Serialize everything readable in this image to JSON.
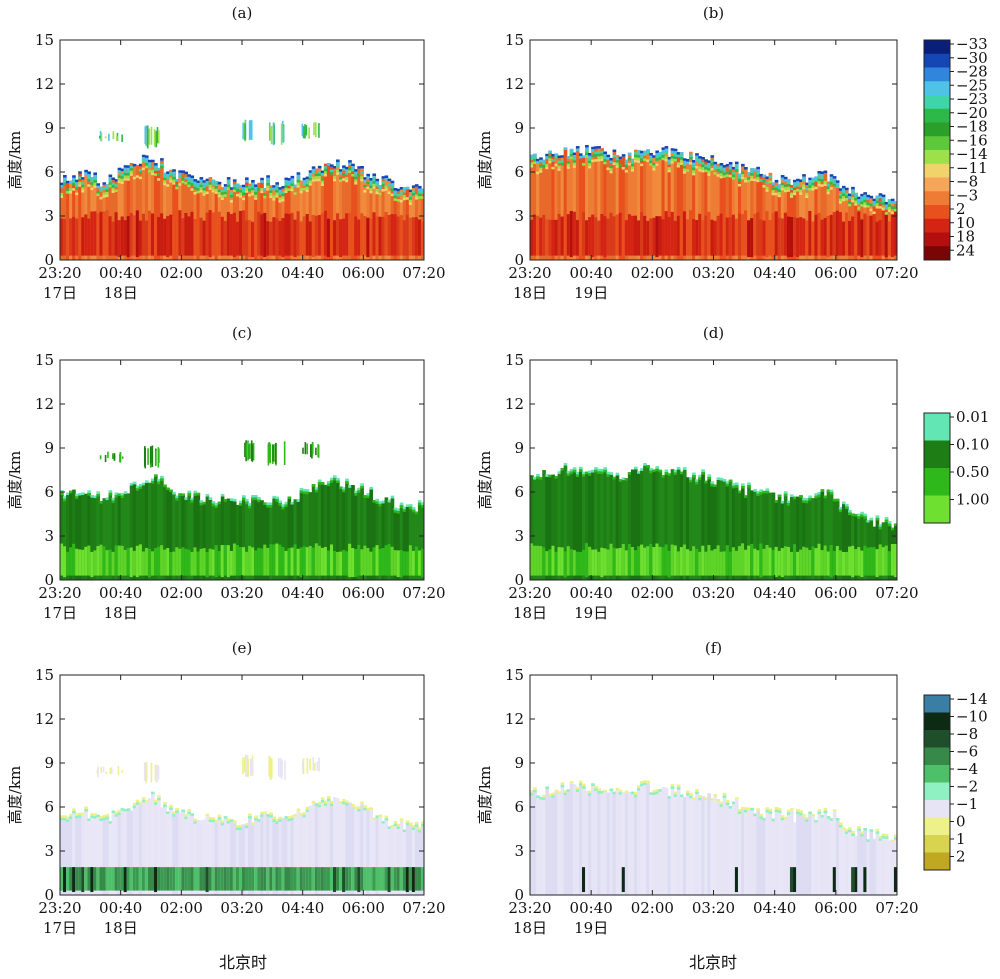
{
  "chart_data": [
    {
      "type": "heatmap",
      "panel_label": "(a)",
      "ylabel": "高度/km",
      "ylim": [
        0,
        15
      ],
      "yticks": [
        "0",
        "3",
        "6",
        "9",
        "12",
        "15"
      ],
      "xticks": [
        "23:20",
        "00:40",
        "02:00",
        "03:20",
        "04:40",
        "06:00",
        "07:20"
      ],
      "date_labels": [
        "17日",
        "18日"
      ],
      "field": "reflectivity",
      "cloud_top_km": [
        5.5,
        5.6,
        5.3,
        6.2,
        7.0,
        5.8,
        5.4,
        5.2,
        5.0,
        5.3,
        5.1,
        6.0,
        6.5,
        6.2,
        5.4,
        4.9,
        4.8
      ],
      "cirrus_layers": [
        {
          "x": [
            "00:00",
            "00:40"
          ],
          "y": [
            8.0,
            8.8
          ]
        },
        {
          "x": [
            "03:10",
            "04:30"
          ],
          "y": [
            8.0,
            9.4
          ]
        }
      ]
    },
    {
      "type": "heatmap",
      "panel_label": "(b)",
      "ylabel": "高度/km",
      "ylim": [
        0,
        15
      ],
      "yticks": [
        "0",
        "3",
        "6",
        "9",
        "12",
        "15"
      ],
      "xticks": [
        "23:20",
        "00:40",
        "02:00",
        "03:20",
        "04:40",
        "06:00",
        "07:20"
      ],
      "date_labels": [
        "18日",
        "19日"
      ],
      "field": "reflectivity",
      "cloud_top_km": [
        6.8,
        7.2,
        7.5,
        7.3,
        7.0,
        7.4,
        7.2,
        7.0,
        6.8,
        6.2,
        5.8,
        5.5,
        5.4,
        5.8,
        4.5,
        4.2,
        3.9
      ]
    },
    {
      "type": "heatmap",
      "panel_label": "(c)",
      "ylabel": "高度/km",
      "ylim": [
        0,
        15
      ],
      "yticks": [
        "0",
        "3",
        "6",
        "9",
        "12",
        "15"
      ],
      "xticks": [
        "23:20",
        "00:40",
        "02:00",
        "03:20",
        "04:40",
        "06:00",
        "07:20"
      ],
      "date_labels": [
        "17日",
        "18日"
      ],
      "field": "linear depolarization",
      "cloud_top_km": [
        5.9,
        5.8,
        5.6,
        6.1,
        7.1,
        6.0,
        5.6,
        5.4,
        5.2,
        5.5,
        5.3,
        6.1,
        6.6,
        6.3,
        5.6,
        5.0,
        4.9
      ]
    },
    {
      "type": "heatmap",
      "panel_label": "(d)",
      "ylabel": "高度/km",
      "ylim": [
        0,
        15
      ],
      "yticks": [
        "0",
        "3",
        "6",
        "9",
        "12",
        "15"
      ],
      "xticks": [
        "23:20",
        "00:40",
        "02:00",
        "03:20",
        "04:40",
        "06:00",
        "07:20"
      ],
      "date_labels": [
        "18日",
        "19日"
      ],
      "field": "linear depolarization",
      "cloud_top_km": [
        7.0,
        7.4,
        7.6,
        7.4,
        7.1,
        7.5,
        7.3,
        7.1,
        6.9,
        6.3,
        5.9,
        5.6,
        5.5,
        5.9,
        4.6,
        4.0,
        3.8
      ]
    },
    {
      "type": "heatmap",
      "panel_label": "(e)",
      "ylabel": "高度/km",
      "ylim": [
        0,
        15
      ],
      "yticks": [
        "0",
        "3",
        "6",
        "9",
        "12",
        "15"
      ],
      "xticks": [
        "23:20",
        "00:40",
        "02:00",
        "03:20",
        "04:40",
        "06:00",
        "07:20"
      ],
      "date_labels": [
        "17日",
        "18日"
      ],
      "xlabel": "北京时",
      "field": "vertical velocity",
      "cloud_top_km": [
        5.4,
        5.5,
        5.2,
        6.0,
        6.8,
        5.7,
        5.3,
        5.1,
        4.9,
        5.2,
        5.0,
        5.9,
        6.4,
        6.1,
        5.3,
        4.8,
        4.7
      ]
    },
    {
      "type": "heatmap",
      "panel_label": "(f)",
      "ylabel": "高度/km",
      "ylim": [
        0,
        15
      ],
      "yticks": [
        "0",
        "3",
        "6",
        "9",
        "12",
        "15"
      ],
      "xticks": [
        "23:20",
        "00:40",
        "02:00",
        "03:20",
        "04:40",
        "06:00",
        "07:20"
      ],
      "date_labels": [
        "18日",
        "19日"
      ],
      "xlabel": "北京时",
      "field": "vertical velocity",
      "cloud_top_km": [
        6.8,
        7.2,
        7.4,
        7.2,
        7.0,
        7.3,
        7.1,
        6.9,
        6.7,
        6.1,
        5.7,
        5.4,
        5.3,
        5.7,
        4.4,
        4.1,
        3.9
      ]
    }
  ],
  "colorbars": [
    {
      "labels": [
        "−33",
        "−30",
        "−28",
        "−25",
        "−23",
        "−20",
        "−18",
        "−16",
        "−14",
        "−11",
        "−8",
        "−3",
        "2",
        "10",
        "18",
        "24"
      ],
      "colors": [
        "#0a1f7a",
        "#1446b4",
        "#2f86dc",
        "#4fc2e8",
        "#3ed6a8",
        "#2fb84a",
        "#2aa02a",
        "#5cc83a",
        "#9ee04a",
        "#f0d36a",
        "#f6a65a",
        "#ef7c34",
        "#e8501e",
        "#d42414",
        "#b50e0e",
        "#7a0505"
      ]
    },
    {
      "labels": [
        "0.01",
        "0.10",
        "0.50",
        "1.00"
      ],
      "colors": [
        "#62e6b4",
        "#1e7d14",
        "#2fb81a",
        "#6ee030"
      ]
    },
    {
      "labels": [
        "−14",
        "−10",
        "−8",
        "−6",
        "−4",
        "−2",
        "−1",
        "0",
        "1",
        "2"
      ],
      "colors": [
        "#3a7ea6",
        "#0c2a14",
        "#1f4f2a",
        "#37894a",
        "#4fc06a",
        "#8ff0c2",
        "#e6e4f5",
        "#eef08a",
        "#d8d450",
        "#c0a820"
      ]
    }
  ],
  "colors": {
    "axis": "#222222",
    "cirrus_blue": "#4fc2e8"
  }
}
